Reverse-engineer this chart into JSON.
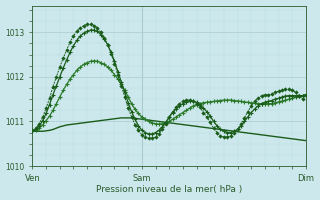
{
  "bg_color": "#cce8ec",
  "grid_color_major": "#aaccd0",
  "grid_color_minor": "#bbdde0",
  "line_color_dark": "#1a5c1a",
  "line_color_medium": "#2a7a2a",
  "ylim": [
    1010.0,
    1013.6
  ],
  "yticks": [
    1010,
    1011,
    1012,
    1013
  ],
  "xtick_labels": [
    "Ven",
    "Sam",
    "Dim"
  ],
  "xtick_positions": [
    0,
    32,
    80
  ],
  "n_points": 81,
  "xlabel": "Pression niveau de la mer( hPa )",
  "series1_y": [
    1010.78,
    1010.78,
    1010.78,
    1010.78,
    1010.79,
    1010.8,
    1010.82,
    1010.85,
    1010.88,
    1010.9,
    1010.92,
    1010.93,
    1010.94,
    1010.95,
    1010.96,
    1010.97,
    1010.98,
    1010.99,
    1011.0,
    1011.01,
    1011.02,
    1011.03,
    1011.04,
    1011.05,
    1011.06,
    1011.07,
    1011.08,
    1011.08,
    1011.08,
    1011.08,
    1011.07,
    1011.06,
    1011.05,
    1011.04,
    1011.03,
    1011.02,
    1011.01,
    1011.0,
    1010.99,
    1010.98,
    1010.97,
    1010.96,
    1010.95,
    1010.94,
    1010.93,
    1010.92,
    1010.91,
    1010.9,
    1010.89,
    1010.88,
    1010.87,
    1010.86,
    1010.85,
    1010.84,
    1010.83,
    1010.82,
    1010.81,
    1010.8,
    1010.79,
    1010.78,
    1010.77,
    1010.76,
    1010.75,
    1010.74,
    1010.73,
    1010.72,
    1010.71,
    1010.7,
    1010.69,
    1010.68,
    1010.67,
    1010.66,
    1010.65,
    1010.64,
    1010.63,
    1010.62,
    1010.61,
    1010.6,
    1010.59,
    1010.58,
    1010.57
  ],
  "series2_y": [
    1010.78,
    1010.8,
    1010.85,
    1010.92,
    1011.02,
    1011.12,
    1011.25,
    1011.4,
    1011.55,
    1011.7,
    1011.83,
    1011.95,
    1012.05,
    1012.15,
    1012.22,
    1012.28,
    1012.32,
    1012.35,
    1012.36,
    1012.35,
    1012.32,
    1012.28,
    1012.22,
    1012.15,
    1012.05,
    1011.95,
    1011.83,
    1011.7,
    1011.55,
    1011.4,
    1011.27,
    1011.18,
    1011.1,
    1011.05,
    1011.0,
    1010.97,
    1010.95,
    1010.94,
    1010.95,
    1010.97,
    1011.0,
    1011.05,
    1011.1,
    1011.15,
    1011.2,
    1011.25,
    1011.3,
    1011.35,
    1011.38,
    1011.4,
    1011.42,
    1011.43,
    1011.44,
    1011.45,
    1011.46,
    1011.47,
    1011.48,
    1011.48,
    1011.48,
    1011.47,
    1011.46,
    1011.45,
    1011.44,
    1011.43,
    1011.42,
    1011.41,
    1011.4,
    1011.4,
    1011.4,
    1011.4,
    1011.4,
    1011.42,
    1011.44,
    1011.46,
    1011.48,
    1011.5,
    1011.52,
    1011.54,
    1011.56,
    1011.58,
    1011.6
  ],
  "series3_y": [
    1010.78,
    1010.82,
    1010.9,
    1011.02,
    1011.18,
    1011.38,
    1011.6,
    1011.8,
    1012.0,
    1012.2,
    1012.38,
    1012.55,
    1012.7,
    1012.82,
    1012.92,
    1012.98,
    1013.02,
    1013.05,
    1013.05,
    1013.02,
    1012.95,
    1012.85,
    1012.72,
    1012.55,
    1012.35,
    1012.12,
    1011.88,
    1011.65,
    1011.42,
    1011.22,
    1011.05,
    1010.9,
    1010.8,
    1010.75,
    1010.72,
    1010.72,
    1010.75,
    1010.8,
    1010.88,
    1010.98,
    1011.1,
    1011.2,
    1011.28,
    1011.35,
    1011.4,
    1011.43,
    1011.45,
    1011.45,
    1011.43,
    1011.38,
    1011.3,
    1011.22,
    1011.12,
    1011.0,
    1010.9,
    1010.82,
    1010.78,
    1010.75,
    1010.75,
    1010.78,
    1010.82,
    1010.9,
    1011.0,
    1011.1,
    1011.2,
    1011.28,
    1011.35,
    1011.4,
    1011.43,
    1011.45,
    1011.47,
    1011.5,
    1011.52,
    1011.55,
    1011.57,
    1011.58,
    1011.58,
    1011.58,
    1011.58,
    1011.58,
    1011.6
  ],
  "series4_y": [
    1010.8,
    1010.85,
    1010.95,
    1011.1,
    1011.3,
    1011.52,
    1011.78,
    1012.0,
    1012.22,
    1012.42,
    1012.6,
    1012.78,
    1012.92,
    1013.02,
    1013.1,
    1013.15,
    1013.18,
    1013.18,
    1013.15,
    1013.1,
    1013.0,
    1012.88,
    1012.72,
    1012.52,
    1012.3,
    1012.05,
    1011.8,
    1011.55,
    1011.3,
    1011.1,
    1010.93,
    1010.8,
    1010.7,
    1010.65,
    1010.62,
    1010.62,
    1010.65,
    1010.72,
    1010.82,
    1010.95,
    1011.1,
    1011.22,
    1011.32,
    1011.4,
    1011.45,
    1011.48,
    1011.48,
    1011.45,
    1011.4,
    1011.32,
    1011.2,
    1011.1,
    1010.98,
    1010.85,
    1010.75,
    1010.68,
    1010.65,
    1010.65,
    1010.68,
    1010.75,
    1010.82,
    1010.95,
    1011.08,
    1011.22,
    1011.35,
    1011.45,
    1011.52,
    1011.58,
    1011.6,
    1011.6,
    1011.62,
    1011.65,
    1011.68,
    1011.7,
    1011.72,
    1011.72,
    1011.7,
    1011.65,
    1011.58,
    1011.5,
    1011.6
  ]
}
